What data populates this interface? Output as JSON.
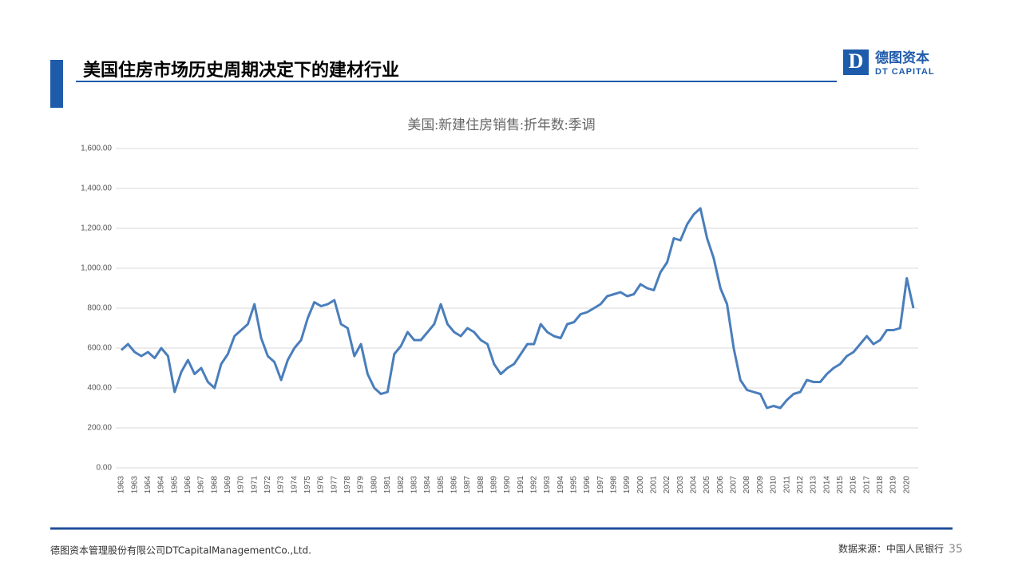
{
  "header": {
    "title": "美国住房市场历史周期决定下的建材行业",
    "logo_letter": "D",
    "logo_cn": "德图资本",
    "logo_en": "DT CAPITAL"
  },
  "chart_data": {
    "type": "line",
    "title": "美国:新建住房销售:折年数:季调",
    "color": "#4a7ebb",
    "grid": true,
    "categories": [
      "1963",
      null,
      "1963",
      null,
      "1964",
      null,
      "1964",
      null,
      "1965",
      null,
      "1966",
      null,
      "1967",
      null,
      "1968",
      null,
      "1969",
      null,
      "1970",
      null,
      "1971",
      null,
      "1972",
      null,
      "1973",
      null,
      "1974",
      null,
      "1975",
      null,
      "1976",
      null,
      "1977",
      null,
      "1978",
      null,
      "1979",
      null,
      "1980",
      null,
      "1981",
      null,
      "1982",
      null,
      "1983",
      null,
      "1984",
      null,
      "1985",
      null,
      "1986",
      null,
      "1987",
      null,
      "1988",
      null,
      "1989",
      null,
      "1990",
      null,
      "1991",
      null,
      "1992",
      null,
      "1993",
      null,
      "1994",
      null,
      "1995",
      null,
      "1996",
      null,
      "1997",
      null,
      "1998",
      null,
      "1999",
      null,
      "2000",
      null,
      "2001",
      null,
      "2002",
      null,
      "2003",
      null,
      "2004",
      null,
      "2005",
      null,
      "2006",
      null,
      "2007",
      null,
      "2008",
      null,
      "2009",
      null,
      "2010",
      null,
      "2011",
      null,
      "2012",
      null,
      "2013",
      null,
      "2014",
      null,
      "2015",
      null,
      "2016",
      null,
      "2017",
      null,
      "2018",
      null,
      "2019",
      null,
      "2020",
      null
    ],
    "values": [
      590,
      620,
      580,
      560,
      580,
      550,
      600,
      560,
      380,
      480,
      540,
      470,
      500,
      430,
      400,
      520,
      570,
      660,
      690,
      720,
      820,
      650,
      560,
      530,
      440,
      540,
      600,
      640,
      750,
      830,
      810,
      820,
      840,
      720,
      700,
      560,
      620,
      470,
      400,
      370,
      380,
      570,
      610,
      680,
      640,
      640,
      680,
      720,
      820,
      720,
      680,
      660,
      700,
      680,
      640,
      620,
      520,
      470,
      500,
      520,
      570,
      620,
      620,
      720,
      680,
      660,
      650,
      720,
      730,
      770,
      780,
      800,
      820,
      860,
      870,
      880,
      860,
      870,
      920,
      900,
      890,
      980,
      1030,
      1150,
      1140,
      1220,
      1270,
      1300,
      1150,
      1050,
      900,
      820,
      600,
      440,
      390,
      380,
      370,
      300,
      310,
      300,
      340,
      370,
      380,
      440,
      430,
      430,
      470,
      500,
      520,
      560,
      580,
      620,
      660,
      620,
      640,
      690,
      690,
      700,
      950,
      800
    ],
    "ylim": [
      0,
      1600
    ],
    "yticks": [
      {
        "value": 0,
        "label": "0.00"
      },
      {
        "value": 200,
        "label": "200.00"
      },
      {
        "value": 400,
        "label": "400.00"
      },
      {
        "value": 600,
        "label": "600.00"
      },
      {
        "value": 800,
        "label": "800.00"
      },
      {
        "value": 1000,
        "label": "1,000.00"
      },
      {
        "value": 1200,
        "label": "1,200.00"
      },
      {
        "value": 1400,
        "label": "1,400.00"
      },
      {
        "value": 1600,
        "label": "1,600.00"
      }
    ]
  },
  "footer": {
    "company": "德图资本管理股份有限公司DTCapitalManagementCo.,Ltd.",
    "source": "数据来源：中国人民银行",
    "page": 35
  }
}
